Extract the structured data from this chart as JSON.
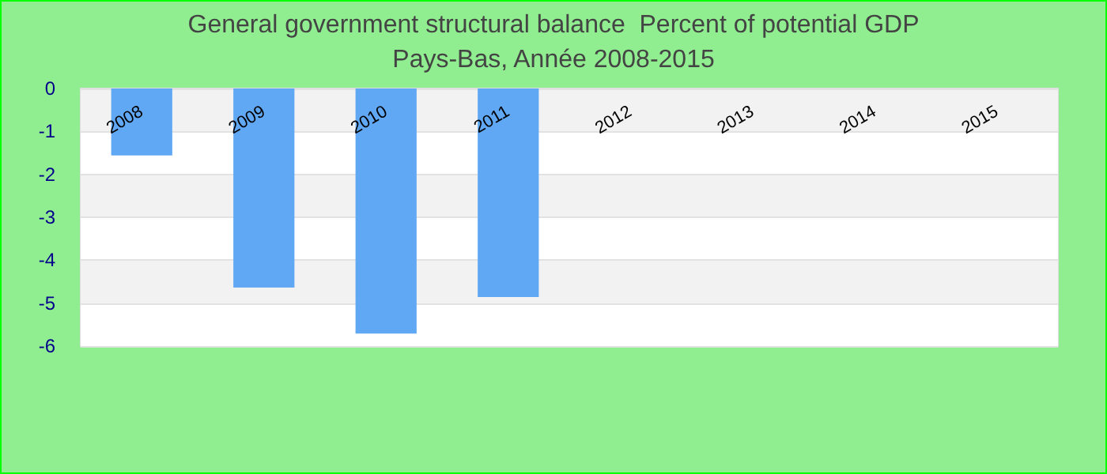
{
  "chart_data": {
    "type": "bar",
    "title": "General government structural balance  Percent of potential GDP",
    "subtitle": "Pays-Bas, Année 2008-2015",
    "categories": [
      "2008",
      "2009",
      "2010",
      "2011",
      "2012",
      "2013",
      "2014",
      "2015"
    ],
    "values": [
      -1.56,
      -4.64,
      -5.71,
      -4.86,
      null,
      null,
      null,
      null
    ],
    "color": "#61a8f4",
    "ylim": [
      -6,
      0
    ],
    "yticks": [
      -6,
      -5,
      -4,
      -3,
      -2,
      -1,
      0
    ],
    "grid": "y"
  }
}
